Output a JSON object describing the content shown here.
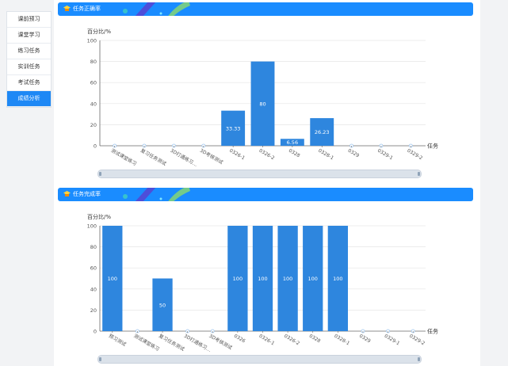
{
  "sidebar": {
    "items": [
      {
        "label": "课前预习",
        "active": false
      },
      {
        "label": "课堂学习",
        "active": false
      },
      {
        "label": "练习任务",
        "active": false
      },
      {
        "label": "实训任务",
        "active": false
      },
      {
        "label": "考试任务",
        "active": false
      },
      {
        "label": "成绩分析",
        "active": true
      }
    ]
  },
  "panels": [
    {
      "title": "任务正确率",
      "icon": "graduation-cap-icon"
    },
    {
      "title": "任务完成率",
      "icon": "graduation-cap-icon"
    }
  ],
  "colors": {
    "accent": "#1a8cff",
    "bar": "#2e86de",
    "active_item": "#1e88f5"
  },
  "chart_data": [
    {
      "type": "bar",
      "title": "任务正确率",
      "ylabel": "百分比/%",
      "xlabel": "任务",
      "ylim": [
        0,
        100
      ],
      "yticks": [
        0,
        20,
        40,
        60,
        80,
        100
      ],
      "grid": true,
      "categories": [
        "测试课堂练习",
        "复习任务测试",
        "3D打通练习…",
        "3D考核测试",
        "0326-1",
        "0326-2",
        "0328",
        "0328-1",
        "0329",
        "0329-1",
        "0329-2"
      ],
      "values": [
        0,
        0,
        0,
        0,
        33.33,
        80,
        6.56,
        26.23,
        0,
        0,
        0
      ],
      "data_labels": [
        "",
        "",
        "",
        "",
        "33.33",
        "80",
        "6.56",
        "26.23",
        "",
        "",
        ""
      ]
    },
    {
      "type": "bar",
      "title": "任务完成率",
      "ylabel": "百分比/%",
      "xlabel": "任务",
      "ylim": [
        0,
        100
      ],
      "yticks": [
        0,
        20,
        40,
        60,
        80,
        100
      ],
      "grid": true,
      "categories": [
        "预习测试",
        "测试课堂练习",
        "复习任务测试",
        "3D打通练习…",
        "3D考核测试",
        "0326",
        "0326-1",
        "0326-2",
        "0328",
        "0328-1",
        "0329",
        "0329-1",
        "0329-2"
      ],
      "values": [
        100,
        0,
        50,
        0,
        0,
        100,
        100,
        100,
        100,
        100,
        0,
        0,
        0
      ],
      "data_labels": [
        "100",
        "",
        "50",
        "",
        "",
        "100",
        "100",
        "100",
        "100",
        "100",
        "",
        "",
        ""
      ]
    }
  ]
}
